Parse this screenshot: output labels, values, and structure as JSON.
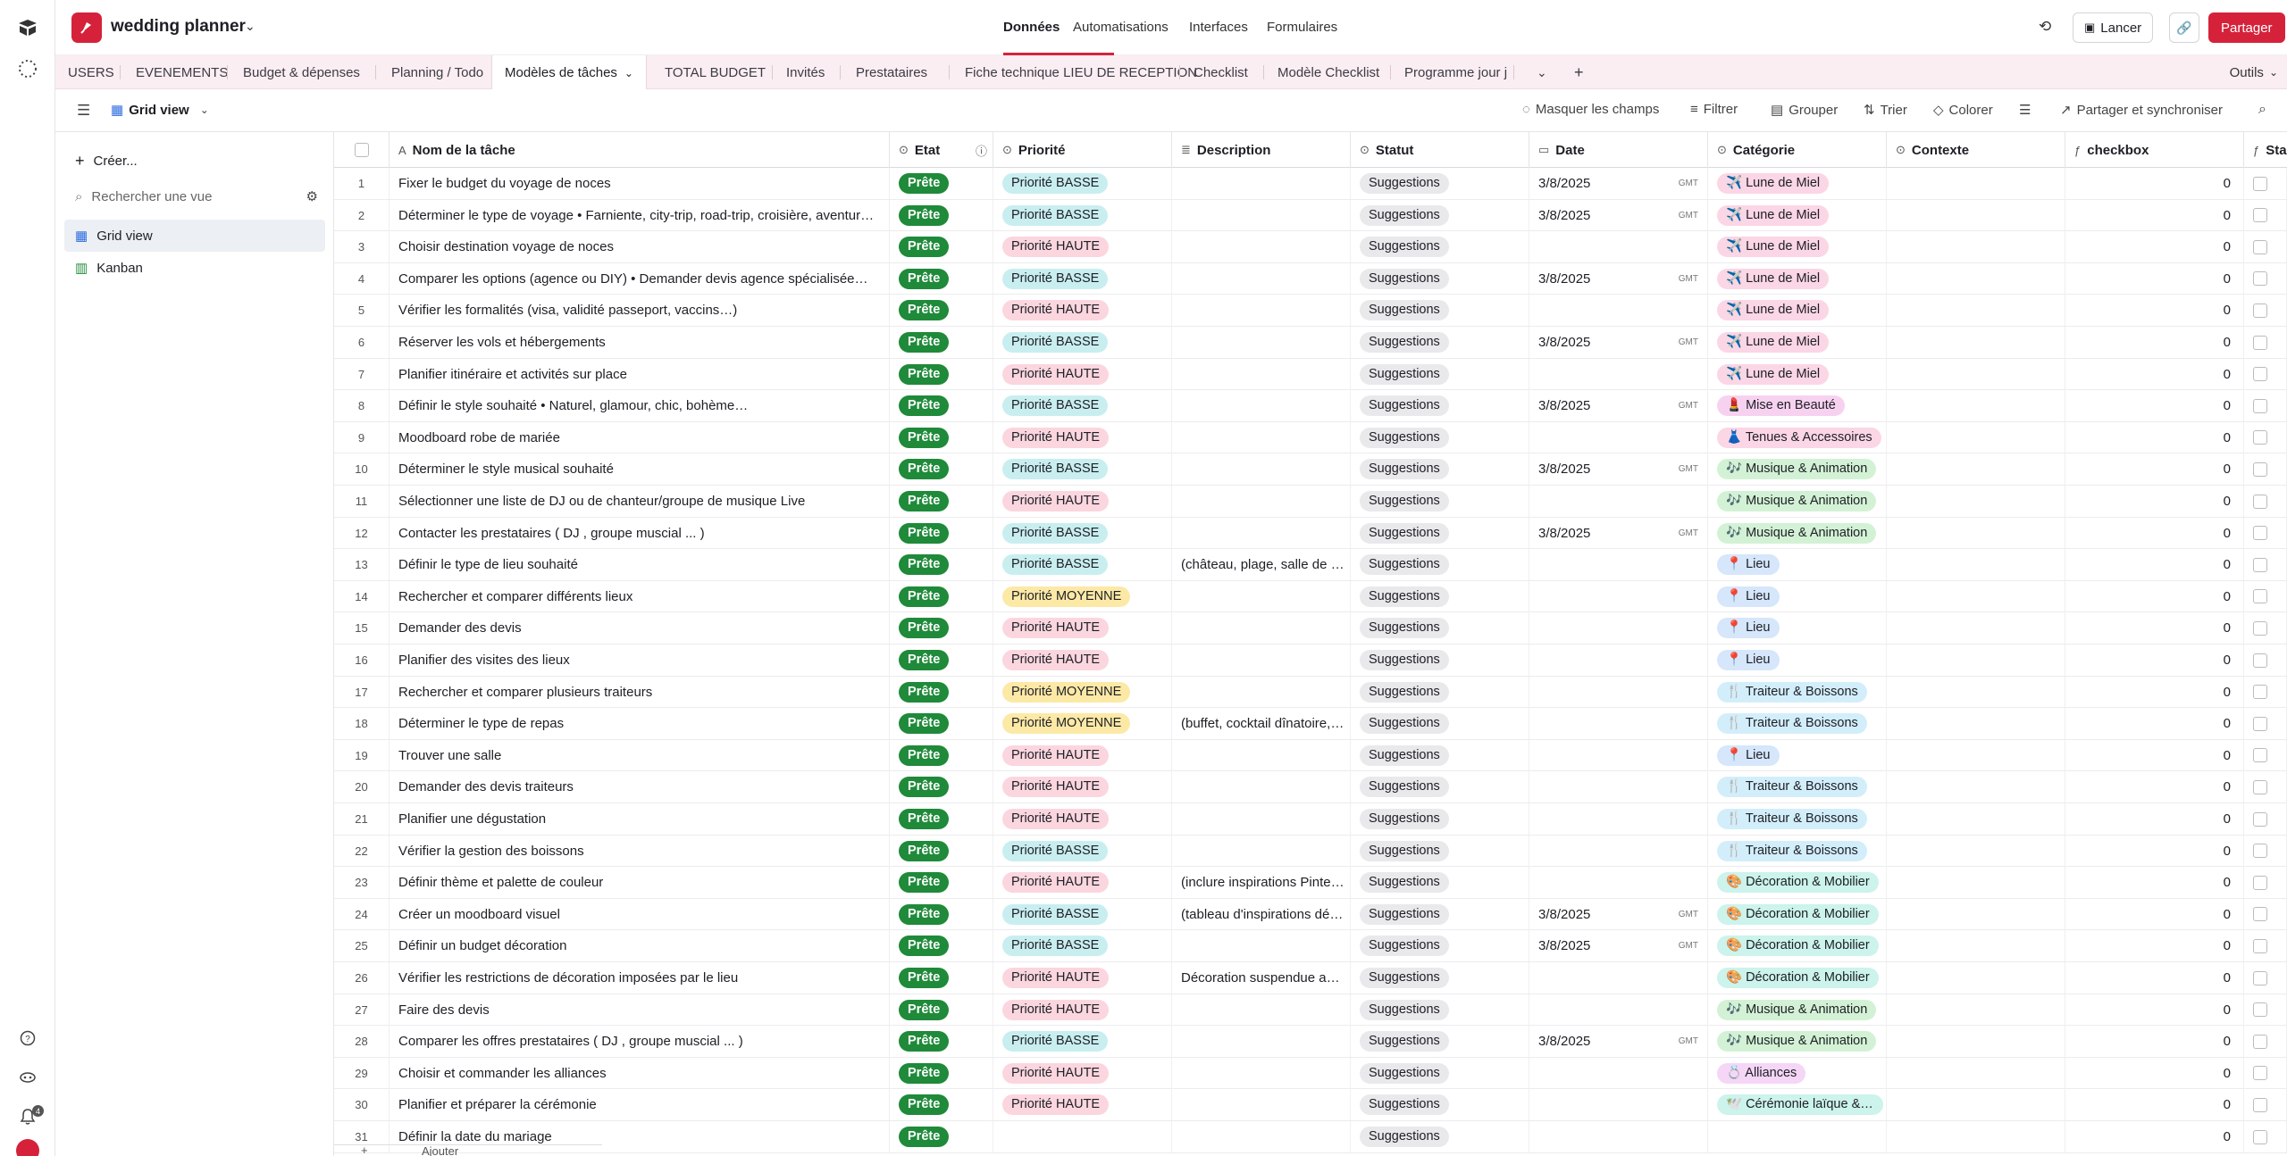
{
  "app": {
    "base_name": "wedding planner"
  },
  "topnav": {
    "items": [
      "Données",
      "Automatisations",
      "Interfaces",
      "Formulaires"
    ],
    "active": "Données"
  },
  "actions": {
    "launch": "Lancer",
    "share": "Partager"
  },
  "tabs": [
    "USERS",
    "EVENEMENTS",
    "Budget & dépenses",
    "Planning / Todo",
    "Modèles de tâches",
    "TOTAL BUDGET",
    "Invités",
    "Prestataires",
    "Fiche technique LIEU DE RECEPTION",
    "Checklist",
    "Modèle Checklist",
    "Programme jour j"
  ],
  "active_tab": "Modèles de tâches",
  "tools_label": "Outils",
  "viewbar": {
    "view_name": "Grid view",
    "hide_fields": "Masquer les champs",
    "filter": "Filtrer",
    "group": "Grouper",
    "sort": "Trier",
    "color": "Colorer",
    "share_sync": "Partager et synchroniser"
  },
  "sidebar": {
    "create": "Créer...",
    "search_placeholder": "Rechercher une vue",
    "views": [
      "Grid view",
      "Kanban"
    ]
  },
  "columns": {
    "name": "Nom de la tâche",
    "etat": "Etat",
    "priorite": "Priorité",
    "description": "Description",
    "statut": "Statut",
    "date": "Date",
    "categorie": "Catégorie",
    "contexte": "Contexte",
    "checkbox": "checkbox",
    "next": "Sta"
  },
  "footer": {
    "add": "Ajouter"
  },
  "rail": {
    "notification_count": "4"
  },
  "colors": {
    "accent": "#d5223a",
    "etat_green": "#1f8a3a",
    "priority_low": "#c9eef0",
    "priority_high": "#fbd6df",
    "priority_medium": "#fde9a6"
  },
  "rows": [
    {
      "n": "1",
      "name": "Fixer le budget du voyage de noces",
      "etat": "Prête",
      "prio": "Priorité BASSE",
      "desc": "",
      "statut": "Suggestions",
      "date": "3/8/2025",
      "cat": "✈️ Lune de Miel",
      "catColor": "#fbd6e4",
      "chk": "0"
    },
    {
      "n": "2",
      "name": "Déterminer le type de voyage • Farniente, city-trip, road-trip, croisière, aventure…",
      "etat": "Prête",
      "prio": "Priorité BASSE",
      "desc": "",
      "statut": "Suggestions",
      "date": "3/8/2025",
      "cat": "✈️ Lune de Miel",
      "catColor": "#fbd6e4",
      "chk": "0"
    },
    {
      "n": "3",
      "name": "Choisir destination voyage de noces",
      "etat": "Prête",
      "prio": "Priorité HAUTE",
      "desc": "",
      "statut": "Suggestions",
      "date": "",
      "cat": "✈️ Lune de Miel",
      "catColor": "#fbd6e4",
      "chk": "0"
    },
    {
      "n": "4",
      "name": "Comparer les options (agence ou DIY) • Demander devis agence spécialisée…",
      "etat": "Prête",
      "prio": "Priorité BASSE",
      "desc": "",
      "statut": "Suggestions",
      "date": "3/8/2025",
      "cat": "✈️ Lune de Miel",
      "catColor": "#fbd6e4",
      "chk": "0"
    },
    {
      "n": "5",
      "name": "Vérifier les formalités (visa, validité passeport, vaccins…)",
      "etat": "Prête",
      "prio": "Priorité HAUTE",
      "desc": "",
      "statut": "Suggestions",
      "date": "",
      "cat": "✈️ Lune de Miel",
      "catColor": "#fbd6e4",
      "chk": "0"
    },
    {
      "n": "6",
      "name": "Réserver les vols et hébergements",
      "etat": "Prête",
      "prio": "Priorité BASSE",
      "desc": "",
      "statut": "Suggestions",
      "date": "3/8/2025",
      "cat": "✈️ Lune de Miel",
      "catColor": "#fbd6e4",
      "chk": "0"
    },
    {
      "n": "7",
      "name": "Planifier itinéraire et activités sur place",
      "etat": "Prête",
      "prio": "Priorité HAUTE",
      "desc": "",
      "statut": "Suggestions",
      "date": "",
      "cat": "✈️ Lune de Miel",
      "catColor": "#fbd6e4",
      "chk": "0"
    },
    {
      "n": "8",
      "name": "Définir le style souhaité • Naturel, glamour, chic, bohème…",
      "etat": "Prête",
      "prio": "Priorité BASSE",
      "desc": "",
      "statut": "Suggestions",
      "date": "3/8/2025",
      "cat": "💄 Mise en Beauté",
      "catColor": "#f7d2f0",
      "chk": "0"
    },
    {
      "n": "9",
      "name": "Moodboard robe de mariée",
      "etat": "Prête",
      "prio": "Priorité HAUTE",
      "desc": "",
      "statut": "Suggestions",
      "date": "",
      "cat": "👗 Tenues & Accessoires",
      "catColor": "#fbd6e4",
      "chk": "0"
    },
    {
      "n": "10",
      "name": "Déterminer le style musical souhaité",
      "etat": "Prête",
      "prio": "Priorité BASSE",
      "desc": "",
      "statut": "Suggestions",
      "date": "3/8/2025",
      "cat": "🎶 Musique & Animation",
      "catColor": "#d3f2d5",
      "chk": "0"
    },
    {
      "n": "11",
      "name": "Sélectionner une liste de DJ ou de chanteur/groupe de musique Live",
      "etat": "Prête",
      "prio": "Priorité HAUTE",
      "desc": "",
      "statut": "Suggestions",
      "date": "",
      "cat": "🎶 Musique & Animation",
      "catColor": "#d3f2d5",
      "chk": "0"
    },
    {
      "n": "12",
      "name": "Contacter les prestataires ( DJ , groupe muscial ... )",
      "etat": "Prête",
      "prio": "Priorité BASSE",
      "desc": "",
      "statut": "Suggestions",
      "date": "3/8/2025",
      "cat": "🎶 Musique & Animation",
      "catColor": "#d3f2d5",
      "chk": "0"
    },
    {
      "n": "13",
      "name": "Définir le type de lieu souhaité",
      "etat": "Prête",
      "prio": "Priorité BASSE",
      "desc": "(château, plage, salle de réception…)",
      "statut": "Suggestions",
      "date": "",
      "cat": "📍 Lieu",
      "catColor": "#d6e6fb",
      "chk": "0"
    },
    {
      "n": "14",
      "name": "Rechercher et comparer différents lieux",
      "etat": "Prête",
      "prio": "Priorité MOYENNE",
      "desc": "",
      "statut": "Suggestions",
      "date": "",
      "cat": "📍 Lieu",
      "catColor": "#d6e6fb",
      "chk": "0"
    },
    {
      "n": "15",
      "name": "Demander des devis",
      "etat": "Prête",
      "prio": "Priorité HAUTE",
      "desc": "",
      "statut": "Suggestions",
      "date": "",
      "cat": "📍 Lieu",
      "catColor": "#d6e6fb",
      "chk": "0"
    },
    {
      "n": "16",
      "name": "Planifier des visites des lieux",
      "etat": "Prête",
      "prio": "Priorité HAUTE",
      "desc": "",
      "statut": "Suggestions",
      "date": "",
      "cat": "📍 Lieu",
      "catColor": "#d6e6fb",
      "chk": "0"
    },
    {
      "n": "17",
      "name": "Rechercher et comparer plusieurs traiteurs",
      "etat": "Prête",
      "prio": "Priorité MOYENNE",
      "desc": "",
      "statut": "Suggestions",
      "date": "",
      "cat": "🍴 Traiteur & Boissons",
      "catColor": "#d3eefb",
      "chk": "0"
    },
    {
      "n": "18",
      "name": "Déterminer le type de repas",
      "etat": "Prête",
      "prio": "Priorité MOYENNE",
      "desc": "(buffet, cocktail dînatoire, repas assis…)",
      "statut": "Suggestions",
      "date": "",
      "cat": "🍴 Traiteur & Boissons",
      "catColor": "#d3eefb",
      "chk": "0"
    },
    {
      "n": "19",
      "name": "Trouver une salle",
      "etat": "Prête",
      "prio": "Priorité HAUTE",
      "desc": "",
      "statut": "Suggestions",
      "date": "",
      "cat": "📍 Lieu",
      "catColor": "#d6e6fb",
      "chk": "0"
    },
    {
      "n": "20",
      "name": "Demander des devis traiteurs",
      "etat": "Prête",
      "prio": "Priorité HAUTE",
      "desc": "",
      "statut": "Suggestions",
      "date": "",
      "cat": "🍴 Traiteur & Boissons",
      "catColor": "#d3eefb",
      "chk": "0"
    },
    {
      "n": "21",
      "name": "Planifier une dégustation",
      "etat": "Prête",
      "prio": "Priorité HAUTE",
      "desc": "",
      "statut": "Suggestions",
      "date": "",
      "cat": "🍴 Traiteur & Boissons",
      "catColor": "#d3eefb",
      "chk": "0"
    },
    {
      "n": "22",
      "name": "Vérifier la gestion des boissons",
      "etat": "Prête",
      "prio": "Priorité BASSE",
      "desc": "",
      "statut": "Suggestions",
      "date": "",
      "cat": "🍴 Traiteur & Boissons",
      "catColor": "#d3eefb",
      "chk": "0"
    },
    {
      "n": "23",
      "name": "Définir thème et palette de couleur",
      "etat": "Prête",
      "prio": "Priorité HAUTE",
      "desc": "(inclure inspirations Pinterest…)",
      "statut": "Suggestions",
      "date": "",
      "cat": "🎨 Décoration & Mobilier",
      "catColor": "#ccf3ec",
      "chk": "0"
    },
    {
      "n": "24",
      "name": "Créer un moodboard visuel",
      "etat": "Prête",
      "prio": "Priorité BASSE",
      "desc": "(tableau d'inspirations déco…)",
      "statut": "Suggestions",
      "date": "3/8/2025",
      "cat": "🎨 Décoration & Mobilier",
      "catColor": "#ccf3ec",
      "chk": "0"
    },
    {
      "n": "25",
      "name": "Définir un budget décoration",
      "etat": "Prête",
      "prio": "Priorité BASSE",
      "desc": "",
      "statut": "Suggestions",
      "date": "3/8/2025",
      "cat": "🎨 Décoration & Mobilier",
      "catColor": "#ccf3ec",
      "chk": "0"
    },
    {
      "n": "26",
      "name": "Vérifier les restrictions de décoration imposées par le lieu",
      "etat": "Prête",
      "prio": "Priorité HAUTE",
      "desc": "Décoration suspendue autorisée ?",
      "statut": "Suggestions",
      "date": "",
      "cat": "🎨 Décoration & Mobilier",
      "catColor": "#ccf3ec",
      "chk": "0"
    },
    {
      "n": "27",
      "name": "Faire des devis",
      "etat": "Prête",
      "prio": "Priorité HAUTE",
      "desc": "",
      "statut": "Suggestions",
      "date": "",
      "cat": "🎶 Musique & Animation",
      "catColor": "#d3f2d5",
      "chk": "0"
    },
    {
      "n": "28",
      "name": "Comparer les offres prestataires ( DJ , groupe muscial ... )",
      "etat": "Prête",
      "prio": "Priorité BASSE",
      "desc": "",
      "statut": "Suggestions",
      "date": "3/8/2025",
      "cat": "🎶 Musique & Animation",
      "catColor": "#d3f2d5",
      "chk": "0"
    },
    {
      "n": "29",
      "name": "Choisir et commander les alliances",
      "etat": "Prête",
      "prio": "Priorité HAUTE",
      "desc": "",
      "statut": "Suggestions",
      "date": "",
      "cat": "💍 Alliances",
      "catColor": "#f5d6f7",
      "chk": "0"
    },
    {
      "n": "30",
      "name": "Planifier et préparer la cérémonie",
      "etat": "Prête",
      "prio": "Priorité HAUTE",
      "desc": "",
      "statut": "Suggestions",
      "date": "",
      "cat": "🕊️ Cérémonie laïque & Officiant",
      "catColor": "#ccf3ec",
      "chk": "0"
    },
    {
      "n": "31",
      "name": "Définir la date du mariage",
      "etat": "Prête",
      "prio": "",
      "desc": "",
      "statut": "Suggestions",
      "date": "",
      "cat": "",
      "catColor": "",
      "chk": "0"
    }
  ]
}
